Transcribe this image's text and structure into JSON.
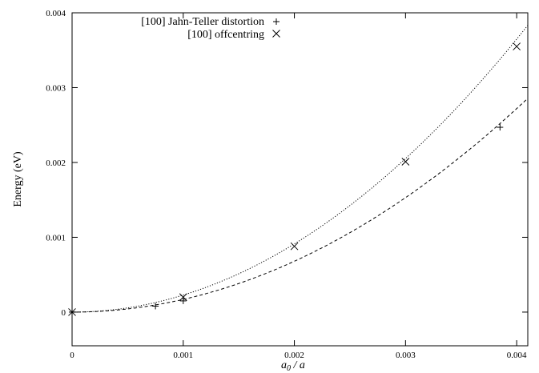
{
  "chart_data": {
    "type": "scatter",
    "xlabel": "a0 / a",
    "xlabel_main": "a",
    "xlabel_sub": "0",
    "xlabel_rest": " / a",
    "ylabel": "Energy (eV)",
    "xlim": [
      0,
      0.0041
    ],
    "ylim": [
      -0.00045,
      0.004
    ],
    "xticks": [
      0,
      0.001,
      0.002,
      0.003,
      0.004
    ],
    "xtick_labels": [
      "0",
      "0.001",
      "0.002",
      "0.003",
      "0.004"
    ],
    "yticks": [
      0,
      0.001,
      0.002,
      0.003,
      0.004
    ],
    "ytick_labels": [
      "0",
      "0.001",
      "0.002",
      "0.003",
      "0.004"
    ],
    "grid": false,
    "legend_position": "top-left",
    "series": [
      {
        "name": "[100] Jahn-Teller distortion",
        "marker": "plus",
        "fit_line": "dashed",
        "fit_coefficient": 170,
        "points": [
          {
            "x": 0,
            "y": 0
          },
          {
            "x": 0.00075,
            "y": 8e-05
          },
          {
            "x": 0.001,
            "y": 0.00015
          },
          {
            "x": 0.00385,
            "y": 0.00247
          }
        ]
      },
      {
        "name": "[100] offcentring",
        "marker": "cross",
        "fit_line": "dotted",
        "fit_coefficient": 228,
        "points": [
          {
            "x": 0,
            "y": 0
          },
          {
            "x": 0.001,
            "y": 0.0002
          },
          {
            "x": 0.002,
            "y": 0.00088
          },
          {
            "x": 0.003,
            "y": 0.00201
          },
          {
            "x": 0.004,
            "y": 0.00355
          }
        ]
      }
    ]
  }
}
